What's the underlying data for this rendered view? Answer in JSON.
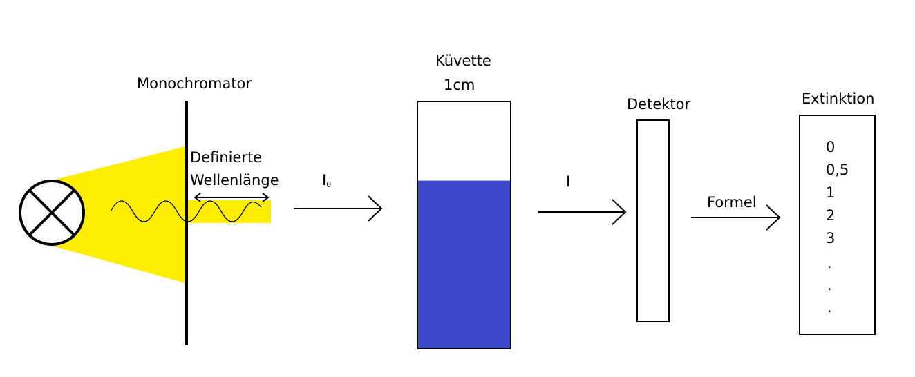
{
  "labels": {
    "monochromator": "Monochromator",
    "defined_wavelength_line1": "Definierte",
    "defined_wavelength_line2": "Wellenlänge",
    "i0_main": "I",
    "i0_sub": "0",
    "cuvette_line1": "Küvette",
    "cuvette_line2": "1cm",
    "i": "I",
    "detector": "Detektor",
    "formula": "Formel",
    "extinction": "Extinktion"
  },
  "extinction_values": [
    "0",
    "0,5",
    "1",
    "2",
    "3",
    ".",
    ".",
    "."
  ],
  "cuvette_fill_fraction": 0.68,
  "colors": {
    "light_beam": "#ffee00",
    "liquid": "#3f48cc",
    "stroke": "#000000",
    "background": "#ffffff"
  },
  "icons": {
    "lamp": "circle-with-cross-lamp-icon"
  }
}
